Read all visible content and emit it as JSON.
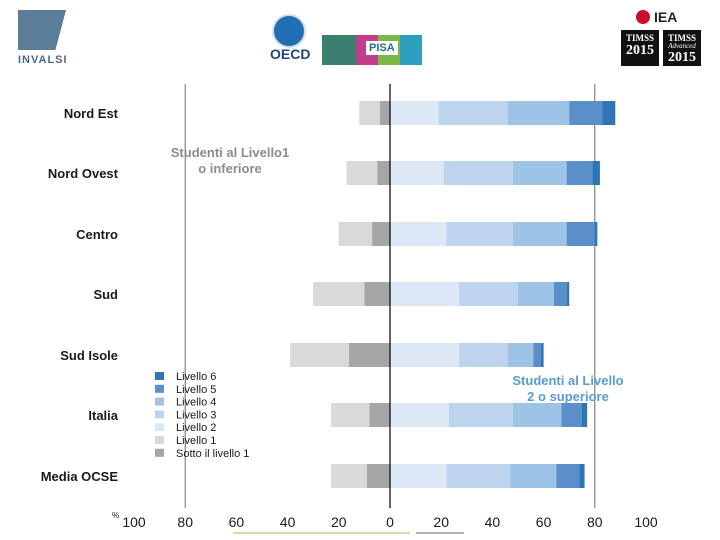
{
  "header": {
    "invalsi_label": "INVALSI",
    "oecd_label": "OECD",
    "pisa_label": "PISA",
    "iea_label": "IEA",
    "timss_badges": [
      {
        "title": "TIMSS",
        "subtitle": "",
        "year": "2015"
      },
      {
        "title": "TIMSS",
        "subtitle": "Advanced",
        "year": "2015"
      }
    ]
  },
  "chart_data": {
    "type": "bar",
    "orientation": "horizontal",
    "stacked": true,
    "diverging": true,
    "categories": [
      "Nord Est",
      "Nord Ovest",
      "Centro",
      "Sud",
      "Sud Isole",
      "Italia",
      "Media OCSE"
    ],
    "series": [
      {
        "name": "Sotto il livello 1",
        "side": "negative",
        "color": "#a6a6a6",
        "values": [
          4,
          5,
          7,
          10,
          16,
          8,
          9
        ]
      },
      {
        "name": "Livello 1",
        "side": "negative",
        "color": "#d9d9d9",
        "values": [
          8,
          12,
          13,
          20,
          23,
          15,
          14
        ]
      },
      {
        "name": "Livello 2",
        "side": "positive",
        "color": "#dde8f6",
        "values": [
          19,
          21,
          22,
          27,
          27,
          23,
          22
        ]
      },
      {
        "name": "Livello 3",
        "side": "positive",
        "color": "#bcd4ee",
        "values": [
          27,
          27,
          26,
          23,
          19,
          25,
          25
        ]
      },
      {
        "name": "Livello 4",
        "side": "positive",
        "color": "#9dc3e6",
        "values": [
          24,
          21,
          21,
          14,
          10,
          19,
          18
        ]
      },
      {
        "name": "Livello 5",
        "side": "positive",
        "color": "#5b8fc9",
        "values": [
          13,
          10,
          11,
          5,
          3,
          8,
          9
        ]
      },
      {
        "name": "Livello 6",
        "side": "positive",
        "color": "#2e75b6",
        "values": [
          5,
          3,
          1,
          1,
          1,
          2,
          2
        ]
      }
    ],
    "x_ticks": [
      "100",
      "80",
      "60",
      "40",
      "20",
      "0",
      "20",
      "40",
      "60",
      "80",
      "100"
    ],
    "xlim": [
      -100,
      100
    ],
    "unit_label": "%",
    "annotations": {
      "left": [
        "Studenti al Livello1",
        "o inferiore"
      ],
      "right": [
        "Studenti al Livello",
        "2 o superiore"
      ]
    },
    "legend_position": "left",
    "legend_order": [
      "Livello 6",
      "Livello 5",
      "Livello 4",
      "Livello 3",
      "Livello 2",
      "Livello 1",
      "Sotto il livello 1"
    ],
    "annotation_color": "#8c8c8c",
    "annotation_right_color": "#5b9bd5"
  }
}
